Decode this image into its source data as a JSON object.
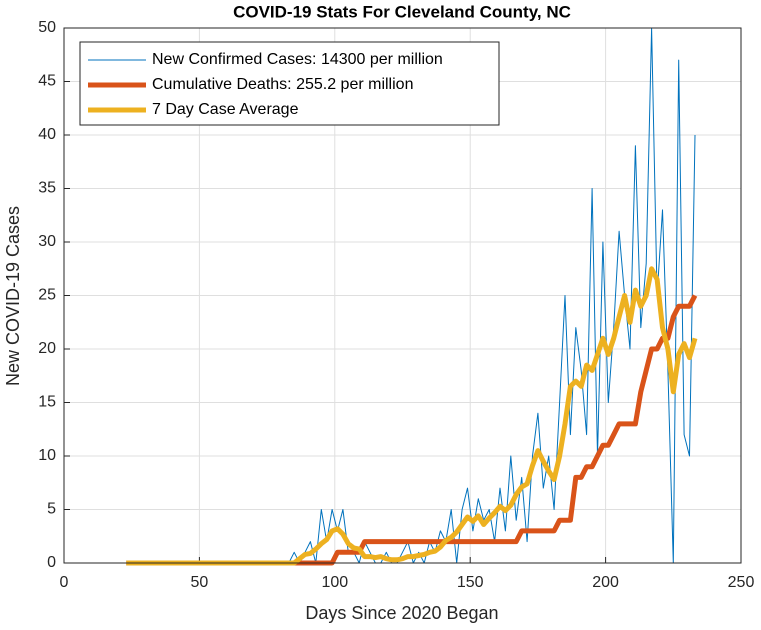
{
  "chart_data": {
    "type": "line",
    "title": "COVID-19 Stats For Cleveland County, NC",
    "x_label": "Days Since 2020 Began",
    "y_label": "New COVID-19 Cases",
    "x": [
      23,
      25,
      27,
      29,
      31,
      33,
      35,
      37,
      39,
      41,
      43,
      45,
      47,
      49,
      51,
      53,
      55,
      57,
      59,
      61,
      63,
      65,
      67,
      69,
      71,
      73,
      75,
      77,
      79,
      81,
      83,
      85,
      87,
      89,
      91,
      93,
      95,
      97,
      99,
      101,
      103,
      105,
      107,
      109,
      111,
      113,
      115,
      117,
      119,
      121,
      123,
      125,
      127,
      129,
      131,
      133,
      135,
      137,
      139,
      141,
      143,
      145,
      147,
      149,
      151,
      153,
      155,
      157,
      159,
      161,
      163,
      165,
      167,
      169,
      171,
      173,
      175,
      177,
      179,
      181,
      183,
      185,
      187,
      189,
      191,
      193,
      195,
      197,
      199,
      201,
      203,
      205,
      207,
      209,
      211,
      213,
      215,
      217,
      219,
      221,
      223,
      225,
      227,
      229,
      231,
      233
    ],
    "series": [
      {
        "name": "New Confirmed Cases: 14300 per million",
        "color": "#0072BD",
        "width": 1,
        "values": [
          0,
          0,
          0,
          0,
          0,
          0,
          0,
          0,
          0,
          0,
          0,
          0,
          0,
          0,
          0,
          0,
          0,
          0,
          0,
          0,
          0,
          0,
          0,
          0,
          0,
          0,
          0,
          0,
          0,
          0,
          0,
          1,
          0,
          1,
          2,
          0,
          5,
          2,
          5,
          3,
          5,
          1,
          1,
          0,
          2,
          1,
          0,
          0,
          1,
          0,
          0,
          1,
          2,
          0,
          1,
          0,
          2,
          1,
          3,
          2,
          5,
          0,
          5,
          7,
          3,
          6,
          4,
          5,
          2,
          7,
          3,
          10,
          4,
          8,
          2,
          10,
          14,
          7,
          10,
          5,
          15,
          25,
          12,
          22,
          18,
          12,
          35,
          10,
          30,
          15,
          22,
          31,
          25,
          20,
          39,
          22,
          28,
          50,
          25,
          33,
          18,
          0,
          47,
          12,
          10,
          40
        ]
      },
      {
        "name": "Cumulative Deaths: 255.2 per million",
        "color": "#D95319",
        "width": 5,
        "values": [
          0,
          0,
          0,
          0,
          0,
          0,
          0,
          0,
          0,
          0,
          0,
          0,
          0,
          0,
          0,
          0,
          0,
          0,
          0,
          0,
          0,
          0,
          0,
          0,
          0,
          0,
          0,
          0,
          0,
          0,
          0,
          0,
          0,
          0,
          0,
          0,
          0,
          0,
          0,
          1,
          1,
          1,
          1,
          1,
          2,
          2,
          2,
          2,
          2,
          2,
          2,
          2,
          2,
          2,
          2,
          2,
          2,
          2,
          2,
          2,
          2,
          2,
          2,
          2,
          2,
          2,
          2,
          2,
          2,
          2,
          2,
          2,
          2,
          3,
          3,
          3,
          3,
          3,
          3,
          3,
          4,
          4,
          4,
          8,
          8,
          9,
          9,
          10,
          11,
          11,
          12,
          13,
          13,
          13,
          13,
          16,
          18,
          20,
          20,
          21,
          21,
          23,
          24,
          24,
          24,
          25
        ]
      },
      {
        "name": "7 Day Case Average",
        "color": "#EDB120",
        "width": 5,
        "values": [
          0,
          0,
          0,
          0,
          0,
          0,
          0,
          0,
          0,
          0,
          0,
          0,
          0,
          0,
          0,
          0,
          0,
          0,
          0,
          0,
          0,
          0,
          0,
          0,
          0,
          0,
          0,
          0,
          0,
          0,
          0,
          0,
          0.4,
          0.8,
          0.9,
          1.3,
          1.8,
          2.2,
          3,
          3.2,
          2.7,
          1.8,
          1.4,
          1.3,
          0.6,
          0.6,
          0.5,
          0.6,
          0.4,
          0.3,
          0.3,
          0.4,
          0.6,
          0.6,
          0.7,
          0.8,
          1.0,
          1.1,
          1.5,
          2.1,
          2.4,
          2.9,
          3.6,
          4.3,
          3.9,
          4.4,
          3.6,
          4.2,
          4.7,
          5.3,
          4.9,
          5.4,
          6.4,
          7.1,
          7.4,
          9.1,
          10.5,
          9.5,
          8.6,
          7.8,
          10.0,
          13.0,
          16.5,
          17.0,
          16.5,
          18.5,
          18.0,
          19.5,
          21.0,
          19.5,
          21.0,
          23.0,
          25.0,
          22.5,
          25.5,
          24.0,
          25.0,
          27.5,
          26.5,
          22.0,
          20.0,
          16.0,
          19.5,
          20.5,
          19.2,
          21.0
        ]
      }
    ],
    "xlim": [
      0,
      250
    ],
    "xticks": [
      0,
      50,
      100,
      150,
      200,
      250
    ],
    "ylim": [
      0,
      50
    ],
    "yticks": [
      0,
      5,
      10,
      15,
      20,
      25,
      30,
      35,
      40,
      45,
      50
    ],
    "grid": true,
    "legend": "northwest"
  }
}
